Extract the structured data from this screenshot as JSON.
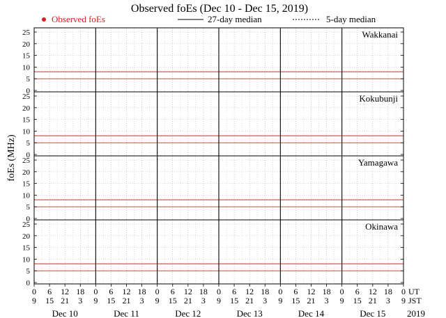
{
  "title": "Observed foEs (Dec 10 - Dec 15, 2019)",
  "legend": {
    "observed": "Observed foEs",
    "median27": "27-day median",
    "median5": "5-day median"
  },
  "ylabel": "foEs (MHz)",
  "time_rows": {
    "ut_label": "UT",
    "jst_label": "JST",
    "ut_ticks": [
      "0",
      "6",
      "12",
      "18",
      "0",
      "6",
      "12",
      "18",
      "0",
      "6",
      "12",
      "18",
      "0",
      "6",
      "12",
      "18",
      "0",
      "6",
      "12",
      "18",
      "0",
      "6",
      "12",
      "18",
      "0"
    ],
    "jst_ticks": [
      "9",
      "15",
      "21",
      "3",
      "9",
      "15",
      "21",
      "3",
      "9",
      "15",
      "21",
      "3",
      "9",
      "15",
      "21",
      "3",
      "9",
      "15",
      "21",
      "3",
      "9",
      "15",
      "21",
      "3",
      "9"
    ]
  },
  "day_labels": [
    "Dec 10",
    "Dec 11",
    "Dec 12",
    "Dec 13",
    "Dec 14",
    "Dec 15"
  ],
  "year_label": "2019",
  "colors": {
    "observed": "#d42020",
    "threshold": "#cc2a2a",
    "median_line": "#000000",
    "grid": "#9a9a9a"
  },
  "chart_data": [
    {
      "station": "Wakkanai",
      "type": "scatter",
      "xlabel": "",
      "ylabel": "foEs (MHz)",
      "ylim": [
        0,
        25
      ],
      "yticks": [
        0,
        5,
        10,
        15,
        20,
        25
      ],
      "xlim_hours_ut": [
        0,
        144
      ],
      "grid": true,
      "reference_lines_mhz": [
        5,
        8
      ],
      "series": [
        {
          "name": "Observed foEs",
          "style": "red-dots",
          "x": [],
          "y": []
        },
        {
          "name": "27-day median",
          "style": "solid",
          "x": [],
          "y": []
        },
        {
          "name": "5-day median",
          "style": "dotted",
          "x": [],
          "y": []
        }
      ]
    },
    {
      "station": "Kokubunji",
      "type": "scatter",
      "xlabel": "",
      "ylabel": "foEs (MHz)",
      "ylim": [
        0,
        25
      ],
      "yticks": [
        0,
        5,
        10,
        15,
        20,
        25
      ],
      "xlim_hours_ut": [
        0,
        144
      ],
      "grid": true,
      "reference_lines_mhz": [
        5,
        8
      ],
      "series": [
        {
          "name": "Observed foEs",
          "style": "red-dots",
          "x": [],
          "y": []
        },
        {
          "name": "27-day median",
          "style": "solid",
          "x": [],
          "y": []
        },
        {
          "name": "5-day median",
          "style": "dotted",
          "x": [],
          "y": []
        }
      ]
    },
    {
      "station": "Yamagawa",
      "type": "scatter",
      "xlabel": "",
      "ylabel": "foEs (MHz)",
      "ylim": [
        0,
        25
      ],
      "yticks": [
        0,
        5,
        10,
        15,
        20,
        25
      ],
      "xlim_hours_ut": [
        0,
        144
      ],
      "grid": true,
      "reference_lines_mhz": [
        5,
        8
      ],
      "series": [
        {
          "name": "Observed foEs",
          "style": "red-dots",
          "x": [],
          "y": []
        },
        {
          "name": "27-day median",
          "style": "solid",
          "x": [],
          "y": []
        },
        {
          "name": "5-day median",
          "style": "dotted",
          "x": [],
          "y": []
        }
      ]
    },
    {
      "station": "Okinawa",
      "type": "scatter",
      "xlabel": "",
      "ylabel": "foEs (MHz)",
      "ylim": [
        0,
        25
      ],
      "yticks": [
        0,
        5,
        10,
        15,
        20,
        25
      ],
      "xlim_hours_ut": [
        0,
        144
      ],
      "grid": true,
      "reference_lines_mhz": [
        5,
        8
      ],
      "series": [
        {
          "name": "Observed foEs",
          "style": "red-dots",
          "x": [],
          "y": []
        },
        {
          "name": "27-day median",
          "style": "solid",
          "x": [],
          "y": []
        },
        {
          "name": "5-day median",
          "style": "dotted",
          "x": [],
          "y": []
        }
      ]
    }
  ]
}
